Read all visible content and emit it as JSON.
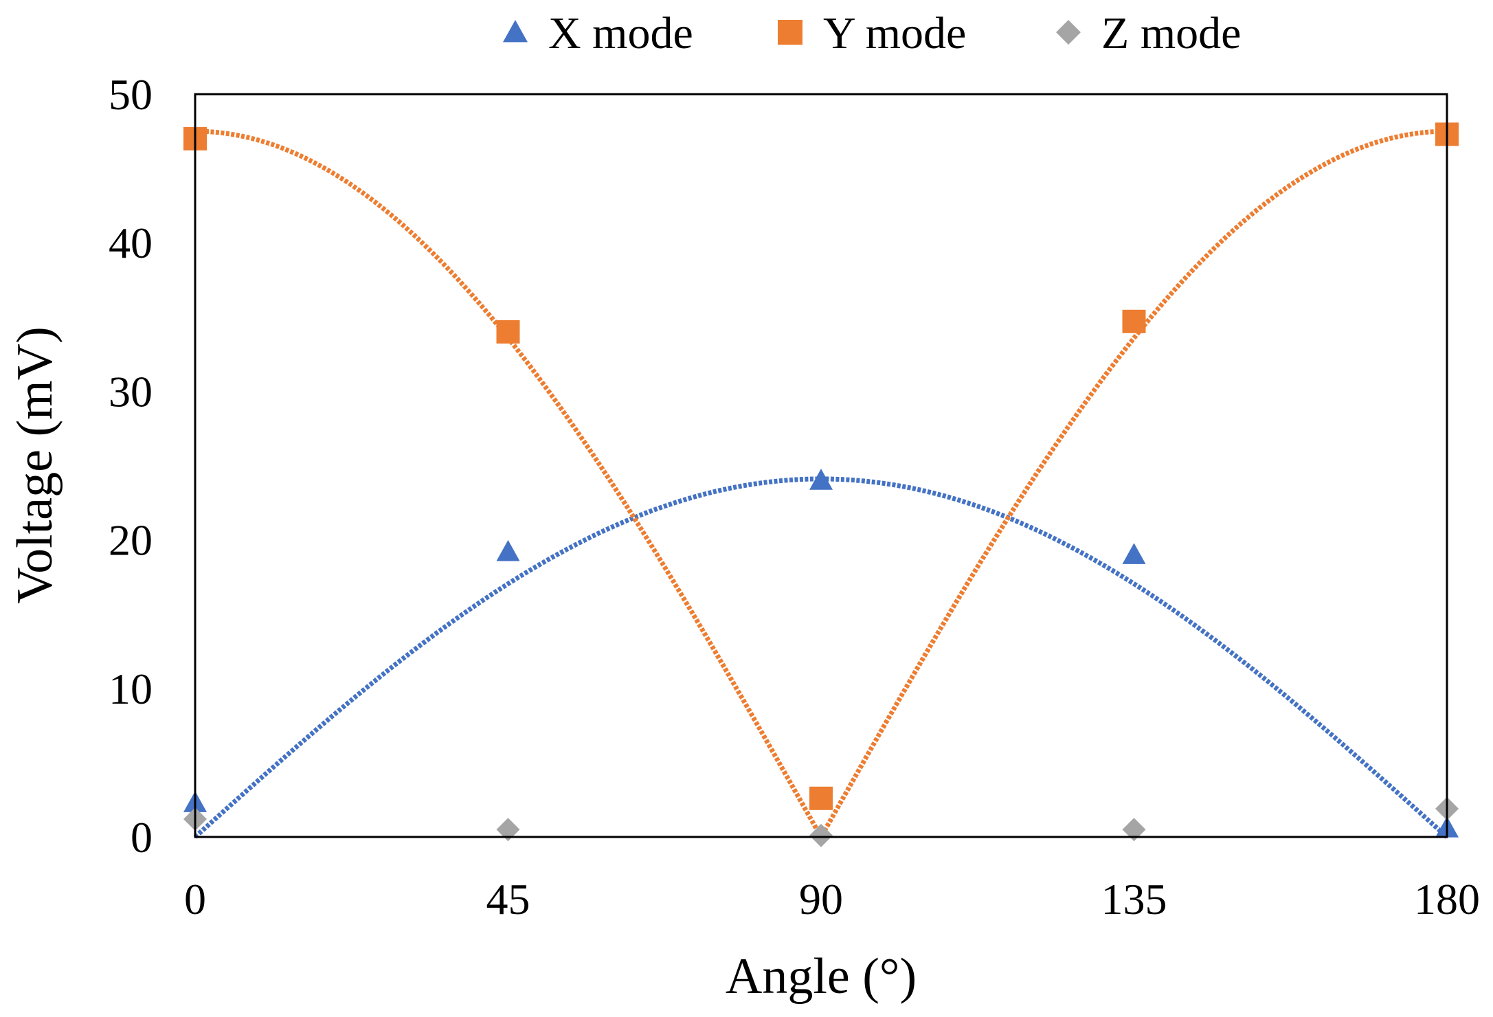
{
  "chart_data": {
    "type": "scatter",
    "xlabel": "Angle (°)",
    "ylabel": "Voltage (mV)",
    "xlim": [
      0,
      180
    ],
    "ylim": [
      0,
      50
    ],
    "xticks": [
      0,
      45,
      90,
      135,
      180
    ],
    "yticks": [
      0,
      10,
      20,
      30,
      40,
      50
    ],
    "grid": false,
    "legend": "top-center",
    "series": [
      {
        "name": "X mode",
        "marker": "triangle",
        "color": "#4472C4",
        "x": [
          0,
          45,
          90,
          135,
          180
        ],
        "y": [
          2.3,
          19.2,
          24.0,
          19.0,
          0.6
        ],
        "fit": "sine-abs",
        "fit_amplitude": 24.1
      },
      {
        "name": "Y mode",
        "marker": "square",
        "color": "#ED7D31",
        "x": [
          0,
          45,
          90,
          135,
          180
        ],
        "y": [
          47.0,
          34.0,
          2.6,
          34.7,
          47.3
        ],
        "fit": "cosine-abs",
        "fit_amplitude": 47.5
      },
      {
        "name": "Z mode",
        "marker": "diamond",
        "color": "#A5A5A5",
        "x": [
          0,
          45,
          90,
          135,
          180
        ],
        "y": [
          1.2,
          0.5,
          0.1,
          0.5,
          1.9
        ]
      }
    ]
  }
}
